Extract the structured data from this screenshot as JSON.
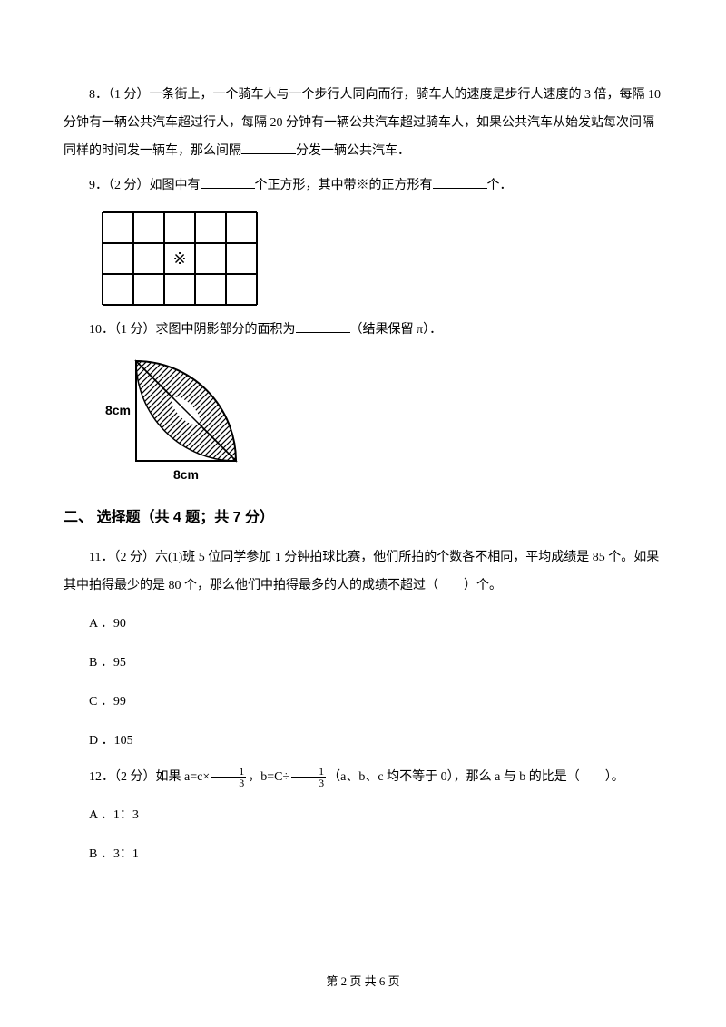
{
  "q8": {
    "number": "8．",
    "points": "（1 分）",
    "text1": "一条街上，一个骑车人与一个步行人同向而行，骑车人的速度是步行人速度的 3 倍，每隔 10 分钟有一辆公共汽车超过行人，每隔 20 分钟有一辆公共汽车超过骑车人，如果公共汽车从始发站每次间隔同样的时间发一辆车，那么间隔",
    "text2": "分发一辆公共汽车．"
  },
  "q9": {
    "number": "9．",
    "points": "（2 分）",
    "text1": "如图中有",
    "text2": "个正方形，其中带※的正方形有",
    "text3": "个．",
    "grid": {
      "rows": 3,
      "cols": 5,
      "cell_size": 34,
      "mark_row": 1,
      "mark_col": 2,
      "mark_symbol": "※",
      "stroke": "#000000",
      "stroke_width": 2
    }
  },
  "q10": {
    "number": "10．",
    "points": "（1 分）",
    "text1": "求图中阴影部分的面积为",
    "text2": "（结果保留 π）．",
    "figure": {
      "size": 110,
      "label": "8cm",
      "stroke": "#000000"
    }
  },
  "section2": {
    "title": "二、 选择题（共 4 题；共 7 分）"
  },
  "q11": {
    "number": "11．",
    "points": "（2 分）",
    "text": "六(1)班 5 位同学参加 1 分钟拍球比赛，他们所拍的个数各不相同，平均成绩是 85 个。如果其中拍得最少的是 80 个，那么他们中拍得最多的人的成绩不超过（　　）个。",
    "options": {
      "a": "A ．90",
      "b": "B ．95",
      "c": "C ．99",
      "d": "D ．105"
    }
  },
  "q12": {
    "number": "12．",
    "points": "（2 分）",
    "text1": "如果 a=c×",
    "text2": "，b=C÷",
    "text3": "（a、b、c 均不等于 0），那么 a 与 b 的比是（　　）。",
    "frac_num": "1",
    "frac_den": "3",
    "options": {
      "a": "A ．1：3",
      "b": "B ．3：1"
    }
  },
  "footer": {
    "text": "第 2 页 共 6 页"
  }
}
